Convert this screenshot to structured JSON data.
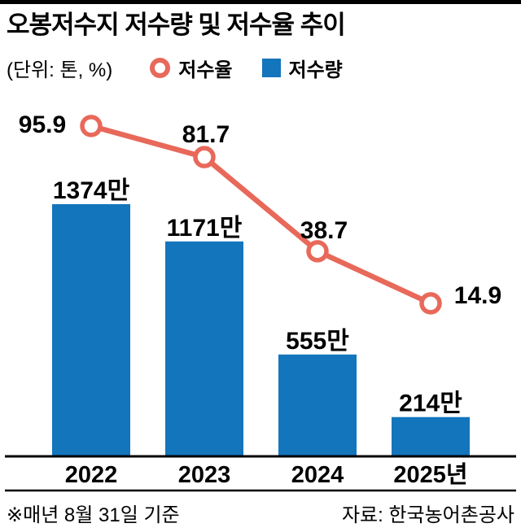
{
  "title": "오봉저수지 저수량 및 저수율 추이",
  "unit_label": "(단위: 톤, %)",
  "legend": {
    "rate": "저수율",
    "volume": "저수량"
  },
  "footnote_left": "※매년 8월 31일 기준",
  "footnote_right": "자료: 한국농어촌공사",
  "colors": {
    "bar": "#1375bc",
    "line": "#e8695a",
    "marker_fill": "#ffffff",
    "text": "#000000",
    "axis": "#000000"
  },
  "chart_data": {
    "type": "bar+line",
    "title": "오봉저수지 저수량 및 저수율 추이",
    "unit": "톤, %",
    "categories": [
      "2022",
      "2023",
      "2024",
      "2025년"
    ],
    "series": [
      {
        "name": "저수량",
        "type": "bar",
        "values": [
          1374,
          1171,
          555,
          214
        ],
        "labels": [
          "1374만",
          "1171만",
          "555만",
          "214만"
        ],
        "value_unit": "만 톤"
      },
      {
        "name": "저수율",
        "type": "line",
        "values": [
          95.9,
          81.7,
          38.7,
          14.9
        ],
        "labels": [
          "95.9",
          "81.7",
          "38.7",
          "14.9"
        ],
        "value_unit": "%"
      }
    ],
    "bar_ylim": [
      0,
      1540
    ],
    "rate_ylim": [
      0,
      100
    ],
    "grid": false,
    "legend_position": "top",
    "note": "매년 8월 31일 기준",
    "source": "한국농어촌공사"
  }
}
